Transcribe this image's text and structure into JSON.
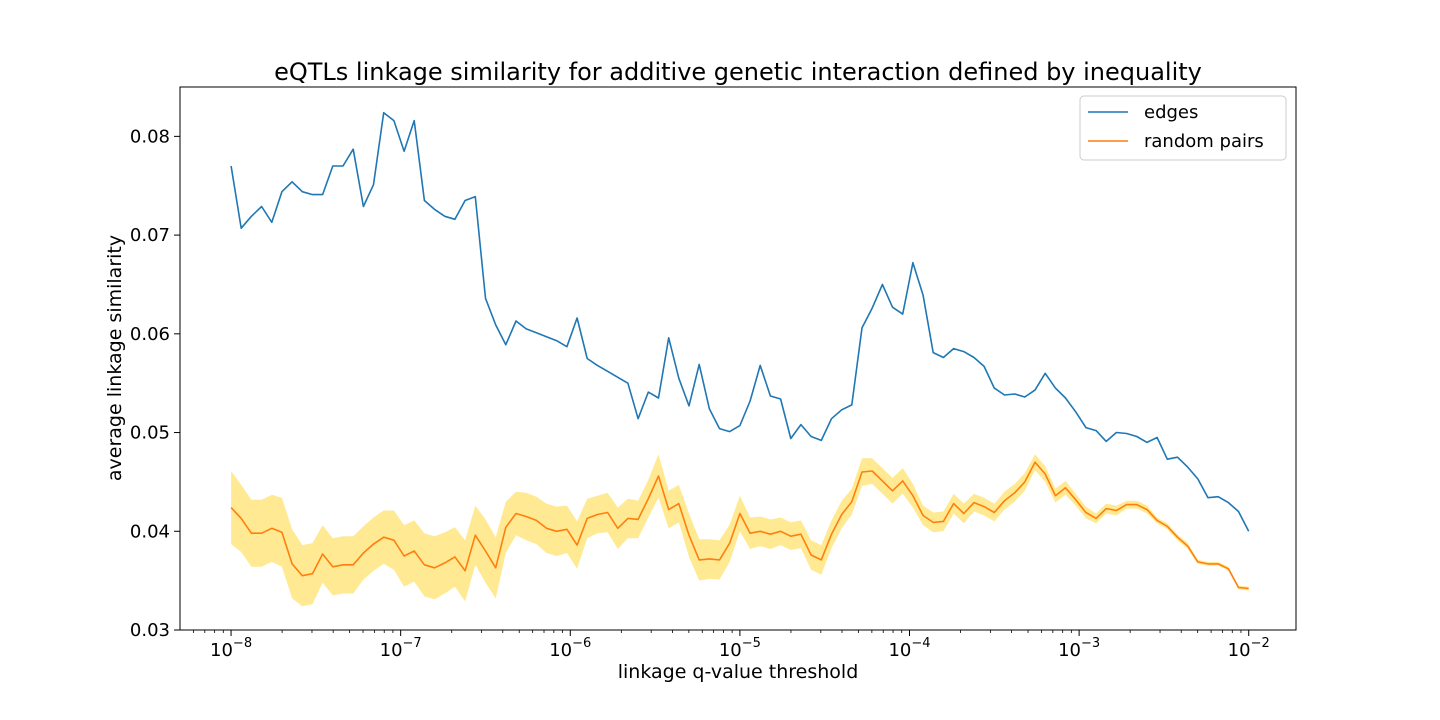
{
  "chart_data": {
    "type": "line",
    "title": "eQTLs linkage similarity for additive genetic interaction defined by inequality",
    "xlabel": "linkage q-value threshold",
    "ylabel": "average linkage similarity",
    "xscale": "log",
    "xlim": [
      5e-09,
      0.019
    ],
    "ylim": [
      0.03,
      0.085
    ],
    "xticks": [
      {
        "value": 1e-08,
        "base": "10",
        "exp": "−8"
      },
      {
        "value": 1e-07,
        "base": "10",
        "exp": "−7"
      },
      {
        "value": 1e-06,
        "base": "10",
        "exp": "−6"
      },
      {
        "value": 1e-05,
        "base": "10",
        "exp": "−5"
      },
      {
        "value": 0.0001,
        "base": "10",
        "exp": "−4"
      },
      {
        "value": 0.001,
        "base": "10",
        "exp": "−3"
      },
      {
        "value": 0.01,
        "base": "10",
        "exp": "−2"
      }
    ],
    "yticks": [
      {
        "value": 0.03,
        "label": "0.03"
      },
      {
        "value": 0.04,
        "label": "0.04"
      },
      {
        "value": 0.05,
        "label": "0.05"
      },
      {
        "value": 0.06,
        "label": "0.06"
      },
      {
        "value": 0.07,
        "label": "0.07"
      },
      {
        "value": 0.08,
        "label": "0.08"
      }
    ],
    "legend_position": "top-right",
    "x_log10": [
      -8.0,
      -7.94,
      -7.88,
      -7.82,
      -7.76,
      -7.7,
      -7.64,
      -7.58,
      -7.52,
      -7.46,
      -7.4,
      -7.34,
      -7.28,
      -7.22,
      -7.16,
      -7.1,
      -7.04,
      -6.98,
      -6.92,
      -6.86,
      -6.8,
      -6.74,
      -6.68,
      -6.62,
      -6.56,
      -6.5,
      -6.44,
      -6.38,
      -6.32,
      -6.26,
      -6.2,
      -6.14,
      -6.08,
      -6.02,
      -5.96,
      -5.9,
      -5.84,
      -5.78,
      -5.72,
      -5.66,
      -5.6,
      -5.54,
      -5.48,
      -5.42,
      -5.36,
      -5.3,
      -5.24,
      -5.18,
      -5.12,
      -5.06,
      -5.0,
      -4.94,
      -4.88,
      -4.82,
      -4.76,
      -4.7,
      -4.64,
      -4.58,
      -4.52,
      -4.46,
      -4.4,
      -4.34,
      -4.28,
      -4.22,
      -4.16,
      -4.1,
      -4.04,
      -3.98,
      -3.92,
      -3.86,
      -3.8,
      -3.74,
      -3.68,
      -3.62,
      -3.56,
      -3.5,
      -3.44,
      -3.38,
      -3.32,
      -3.26,
      -3.2,
      -3.14,
      -3.08,
      -3.02,
      -2.96,
      -2.9,
      -2.84,
      -2.78,
      -2.72,
      -2.66,
      -2.6,
      -2.54,
      -2.48,
      -2.42,
      -2.36,
      -2.3,
      -2.24,
      -2.18,
      -2.12,
      -2.06,
      -2.0
    ],
    "series": [
      {
        "name": "edges",
        "color": "#1f77b4",
        "values": [
          0.077,
          0.0707,
          0.0719,
          0.0729,
          0.0713,
          0.0744,
          0.0754,
          0.0744,
          0.0741,
          0.0741,
          0.077,
          0.077,
          0.0787,
          0.0729,
          0.0751,
          0.0824,
          0.0816,
          0.0785,
          0.0816,
          0.0735,
          0.0726,
          0.0719,
          0.0716,
          0.0735,
          0.0739,
          0.0636,
          0.0609,
          0.0589,
          0.0613,
          0.0605,
          0.0601,
          0.0597,
          0.0593,
          0.0587,
          0.0616,
          0.0575,
          0.0568,
          0.0562,
          0.0556,
          0.055,
          0.0514,
          0.0541,
          0.0535,
          0.0596,
          0.0555,
          0.0527,
          0.0569,
          0.0524,
          0.0504,
          0.0501,
          0.0507,
          0.0532,
          0.0568,
          0.0537,
          0.0534,
          0.0494,
          0.0508,
          0.0496,
          0.0492,
          0.0514,
          0.0523,
          0.0528,
          0.0606,
          0.0626,
          0.065,
          0.0627,
          0.062,
          0.0672,
          0.0639,
          0.0581,
          0.0576,
          0.0585,
          0.0582,
          0.0576,
          0.0567,
          0.0545,
          0.0538,
          0.0539,
          0.0536,
          0.0543,
          0.056,
          0.0545,
          0.0535,
          0.0521,
          0.0505,
          0.0502,
          0.0491,
          0.05,
          0.0499,
          0.0496,
          0.049,
          0.0495,
          0.0473,
          0.0475,
          0.0465,
          0.0453,
          0.0434,
          0.0435,
          0.0429,
          0.042,
          0.04
        ]
      },
      {
        "name": "random pairs",
        "color": "#ff7f0e",
        "band_color": "#ffe680",
        "values": [
          0.0424,
          0.0413,
          0.0398,
          0.0398,
          0.0403,
          0.0399,
          0.0367,
          0.0355,
          0.0357,
          0.0377,
          0.0364,
          0.0366,
          0.0366,
          0.0378,
          0.0387,
          0.0394,
          0.0391,
          0.0375,
          0.038,
          0.0366,
          0.0363,
          0.0368,
          0.0374,
          0.036,
          0.0396,
          0.038,
          0.0363,
          0.0404,
          0.0418,
          0.0415,
          0.0411,
          0.0403,
          0.04,
          0.0402,
          0.0386,
          0.0413,
          0.0417,
          0.0419,
          0.0403,
          0.0413,
          0.0412,
          0.0433,
          0.0456,
          0.0422,
          0.0428,
          0.0396,
          0.0371,
          0.0372,
          0.0371,
          0.0388,
          0.0418,
          0.0398,
          0.04,
          0.0397,
          0.04,
          0.0395,
          0.0397,
          0.0376,
          0.0371,
          0.0397,
          0.0417,
          0.043,
          0.046,
          0.0461,
          0.0451,
          0.0441,
          0.0451,
          0.0436,
          0.0416,
          0.0409,
          0.041,
          0.0428,
          0.0418,
          0.0429,
          0.0425,
          0.0419,
          0.0431,
          0.0439,
          0.045,
          0.047,
          0.0458,
          0.0436,
          0.0444,
          0.0432,
          0.0419,
          0.0413,
          0.0423,
          0.0421,
          0.0427,
          0.0427,
          0.0422,
          0.0411,
          0.0405,
          0.0394,
          0.0385,
          0.0369,
          0.0367,
          0.0367,
          0.0362,
          0.0343,
          0.0342
        ],
        "band_upper": [
          0.0461,
          0.0447,
          0.0432,
          0.0432,
          0.0437,
          0.0434,
          0.0402,
          0.0386,
          0.0388,
          0.0406,
          0.0393,
          0.0395,
          0.0395,
          0.0405,
          0.0414,
          0.0421,
          0.0421,
          0.0406,
          0.0411,
          0.0398,
          0.0395,
          0.0399,
          0.0404,
          0.0391,
          0.0426,
          0.0412,
          0.0394,
          0.043,
          0.044,
          0.0439,
          0.0435,
          0.0428,
          0.0425,
          0.0426,
          0.041,
          0.0433,
          0.0436,
          0.0439,
          0.0424,
          0.0433,
          0.0431,
          0.0452,
          0.0478,
          0.0441,
          0.0447,
          0.0418,
          0.0392,
          0.0392,
          0.0391,
          0.0407,
          0.0436,
          0.0414,
          0.0415,
          0.0412,
          0.0414,
          0.0409,
          0.0411,
          0.0391,
          0.0386,
          0.0411,
          0.0431,
          0.0443,
          0.0474,
          0.0474,
          0.0464,
          0.0454,
          0.0464,
          0.0448,
          0.0426,
          0.0419,
          0.042,
          0.0438,
          0.0428,
          0.0438,
          0.0434,
          0.0428,
          0.044,
          0.0448,
          0.0459,
          0.0478,
          0.0466,
          0.0443,
          0.0451,
          0.0438,
          0.0425,
          0.0418,
          0.0428,
          0.0426,
          0.0431,
          0.0431,
          0.0426,
          0.0414,
          0.0408,
          0.0397,
          0.0388,
          0.0371,
          0.0369,
          0.0369,
          0.0364,
          0.0345,
          0.0344
        ],
        "band_lower": [
          0.0387,
          0.0379,
          0.0364,
          0.0364,
          0.0369,
          0.0364,
          0.0332,
          0.0324,
          0.0326,
          0.0348,
          0.0335,
          0.0337,
          0.0337,
          0.0351,
          0.036,
          0.0367,
          0.0361,
          0.0344,
          0.0349,
          0.0334,
          0.0331,
          0.0337,
          0.0344,
          0.0329,
          0.0366,
          0.0348,
          0.0332,
          0.0378,
          0.0396,
          0.0391,
          0.0387,
          0.0378,
          0.0375,
          0.0378,
          0.0362,
          0.0393,
          0.0398,
          0.0399,
          0.0382,
          0.0393,
          0.0393,
          0.0414,
          0.0434,
          0.0403,
          0.0409,
          0.0374,
          0.035,
          0.0352,
          0.0351,
          0.0369,
          0.04,
          0.0382,
          0.0385,
          0.0382,
          0.0386,
          0.0381,
          0.0383,
          0.0361,
          0.0356,
          0.0383,
          0.0403,
          0.0417,
          0.0446,
          0.0448,
          0.0438,
          0.0428,
          0.0438,
          0.0424,
          0.0406,
          0.0399,
          0.04,
          0.0418,
          0.0408,
          0.042,
          0.0416,
          0.041,
          0.0422,
          0.043,
          0.0441,
          0.0462,
          0.045,
          0.0429,
          0.0437,
          0.0426,
          0.0413,
          0.0408,
          0.0418,
          0.0416,
          0.0423,
          0.0423,
          0.0418,
          0.0408,
          0.0402,
          0.0391,
          0.0382,
          0.0367,
          0.0365,
          0.0365,
          0.036,
          0.0341,
          0.034
        ]
      }
    ]
  }
}
